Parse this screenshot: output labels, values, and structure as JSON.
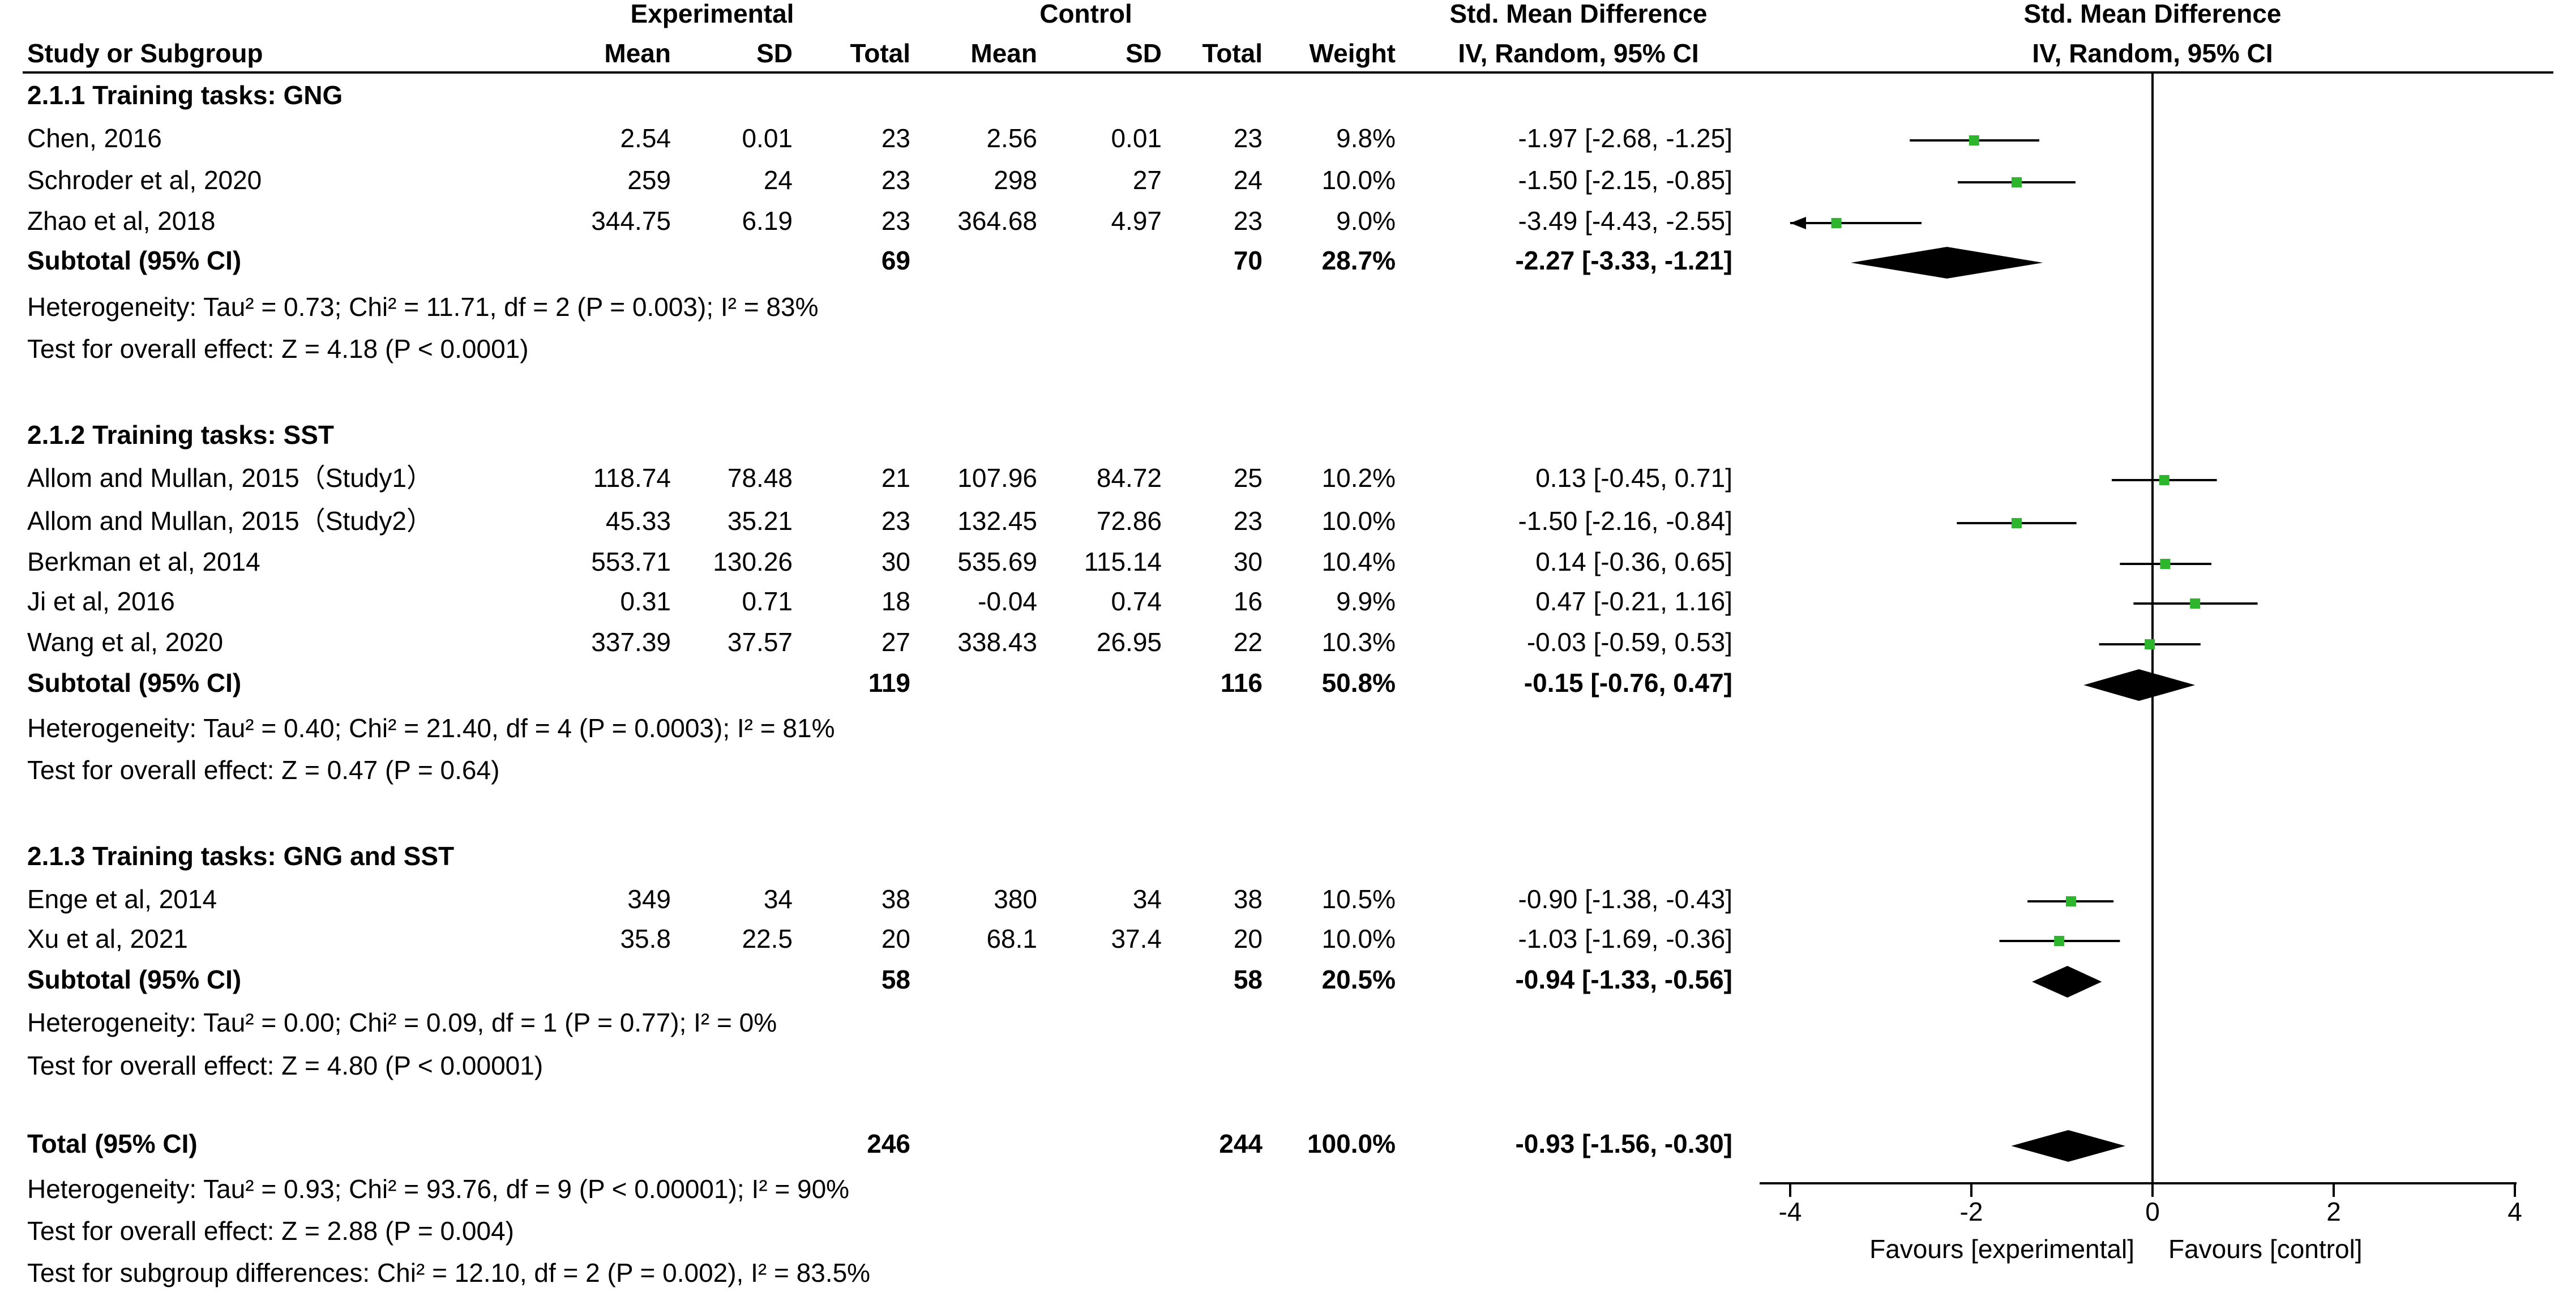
{
  "chart_data": {
    "type": "forest",
    "header": {
      "group_experimental": "Experimental",
      "group_control": "Control",
      "plot_title": "Std. Mean Difference",
      "col_study": "Study or Subgroup",
      "col_mean": "Mean",
      "col_sd": "SD",
      "col_total": "Total",
      "col_weight": "Weight",
      "col_smd_title": "Std. Mean Difference",
      "col_smd_method": "IV, Random, 95% CI",
      "plot_method": "IV, Random, 95% CI"
    },
    "subgroups": [
      {
        "title": "2.1.1 Training tasks: GNG",
        "studies": [
          {
            "name": "Chen, 2016",
            "e_mean": "2.54",
            "e_sd": "0.01",
            "e_total": "23",
            "c_mean": "2.56",
            "c_sd": "0.01",
            "c_total": "23",
            "weight": "9.8%",
            "ci_text": "-1.97 [-2.68, -1.25]",
            "est": -1.97,
            "lo": -2.68,
            "hi": -1.25
          },
          {
            "name": "Schroder et al, 2020",
            "e_mean": "259",
            "e_sd": "24",
            "e_total": "23",
            "c_mean": "298",
            "c_sd": "27",
            "c_total": "24",
            "weight": "10.0%",
            "ci_text": "-1.50 [-2.15, -0.85]",
            "est": -1.5,
            "lo": -2.15,
            "hi": -0.85
          },
          {
            "name": "Zhao et al, 2018",
            "e_mean": "344.75",
            "e_sd": "6.19",
            "e_total": "23",
            "c_mean": "364.68",
            "c_sd": "4.97",
            "c_total": "23",
            "weight": "9.0%",
            "ci_text": "-3.49 [-4.43, -2.55]",
            "est": -3.49,
            "lo": -4.43,
            "hi": -2.55
          }
        ],
        "subtotal": {
          "label": "Subtotal (95% CI)",
          "e_total": "69",
          "c_total": "70",
          "weight": "28.7%",
          "ci_text": "-2.27 [-3.33, -1.21]",
          "est": -2.27,
          "lo": -3.33,
          "hi": -1.21
        },
        "heterogeneity": "Heterogeneity: Tau² = 0.73; Chi² = 11.71, df = 2 (P = 0.003); I² = 83%",
        "overall": "Test for overall effect: Z = 4.18 (P < 0.0001)"
      },
      {
        "title": "2.1.2 Training tasks: SST",
        "studies": [
          {
            "name": "Allom and Mullan, 2015（Study1）",
            "e_mean": "118.74",
            "e_sd": "78.48",
            "e_total": "21",
            "c_mean": "107.96",
            "c_sd": "84.72",
            "c_total": "25",
            "weight": "10.2%",
            "ci_text": "0.13 [-0.45, 0.71]",
            "est": 0.13,
            "lo": -0.45,
            "hi": 0.71
          },
          {
            "name": "Allom and Mullan, 2015（Study2）",
            "e_mean": "45.33",
            "e_sd": "35.21",
            "e_total": "23",
            "c_mean": "132.45",
            "c_sd": "72.86",
            "c_total": "23",
            "weight": "10.0%",
            "ci_text": "-1.50 [-2.16, -0.84]",
            "est": -1.5,
            "lo": -2.16,
            "hi": -0.84
          },
          {
            "name": "Berkman et al, 2014",
            "e_mean": "553.71",
            "e_sd": "130.26",
            "e_total": "30",
            "c_mean": "535.69",
            "c_sd": "115.14",
            "c_total": "30",
            "weight": "10.4%",
            "ci_text": "0.14 [-0.36, 0.65]",
            "est": 0.14,
            "lo": -0.36,
            "hi": 0.65
          },
          {
            "name": "Ji et al, 2016",
            "e_mean": "0.31",
            "e_sd": "0.71",
            "e_total": "18",
            "c_mean": "-0.04",
            "c_sd": "0.74",
            "c_total": "16",
            "weight": "9.9%",
            "ci_text": "0.47 [-0.21, 1.16]",
            "est": 0.47,
            "lo": -0.21,
            "hi": 1.16
          },
          {
            "name": "Wang et al, 2020",
            "e_mean": "337.39",
            "e_sd": "37.57",
            "e_total": "27",
            "c_mean": "338.43",
            "c_sd": "26.95",
            "c_total": "22",
            "weight": "10.3%",
            "ci_text": "-0.03 [-0.59, 0.53]",
            "est": -0.03,
            "lo": -0.59,
            "hi": 0.53
          }
        ],
        "subtotal": {
          "label": "Subtotal (95% CI)",
          "e_total": "119",
          "c_total": "116",
          "weight": "50.8%",
          "ci_text": "-0.15 [-0.76, 0.47]",
          "est": -0.15,
          "lo": -0.76,
          "hi": 0.47
        },
        "heterogeneity": "Heterogeneity: Tau² = 0.40; Chi² = 21.40, df = 4 (P = 0.0003); I² = 81%",
        "overall": "Test for overall effect: Z = 0.47 (P = 0.64)"
      },
      {
        "title": "2.1.3 Training tasks: GNG and SST",
        "studies": [
          {
            "name": "Enge et al, 2014",
            "e_mean": "349",
            "e_sd": "34",
            "e_total": "38",
            "c_mean": "380",
            "c_sd": "34",
            "c_total": "38",
            "weight": "10.5%",
            "ci_text": "-0.90 [-1.38, -0.43]",
            "est": -0.9,
            "lo": -1.38,
            "hi": -0.43
          },
          {
            "name": "Xu et al, 2021",
            "e_mean": "35.8",
            "e_sd": "22.5",
            "e_total": "20",
            "c_mean": "68.1",
            "c_sd": "37.4",
            "c_total": "20",
            "weight": "10.0%",
            "ci_text": "-1.03 [-1.69, -0.36]",
            "est": -1.03,
            "lo": -1.69,
            "hi": -0.36
          }
        ],
        "subtotal": {
          "label": "Subtotal (95% CI)",
          "e_total": "58",
          "c_total": "58",
          "weight": "20.5%",
          "ci_text": "-0.94 [-1.33, -0.56]",
          "est": -0.94,
          "lo": -1.33,
          "hi": -0.56
        },
        "heterogeneity": "Heterogeneity: Tau² = 0.00; Chi² = 0.09, df = 1 (P = 0.77); I² = 0%",
        "overall": "Test for overall effect: Z = 4.80 (P < 0.00001)"
      }
    ],
    "total": {
      "label": "Total (95% CI)",
      "e_total": "246",
      "c_total": "244",
      "weight": "100.0%",
      "ci_text": "-0.93 [-1.56, -0.30]",
      "est": -0.93,
      "lo": -1.56,
      "hi": -0.3,
      "heterogeneity": "Heterogeneity: Tau² = 0.93; Chi² = 93.76, df = 9 (P < 0.00001); I² = 90%",
      "overall": "Test for overall effect: Z = 2.88 (P = 0.004)",
      "subgroup_diff": "Test for subgroup differences: Chi² = 12.10, df = 2 (P = 0.002), I² = 83.5%"
    },
    "axis": {
      "xlim": [
        -4,
        4
      ],
      "ticks": [
        -4,
        -2,
        0,
        2,
        4
      ],
      "tick_labels": [
        "-4",
        "-2",
        "0",
        "2",
        "4"
      ],
      "favours_left": "Favours [experimental]",
      "favours_right": "Favours [control]"
    },
    "colors": {
      "study_marker": "#2db52d",
      "diamond": "#000000",
      "line": "#000000"
    }
  }
}
